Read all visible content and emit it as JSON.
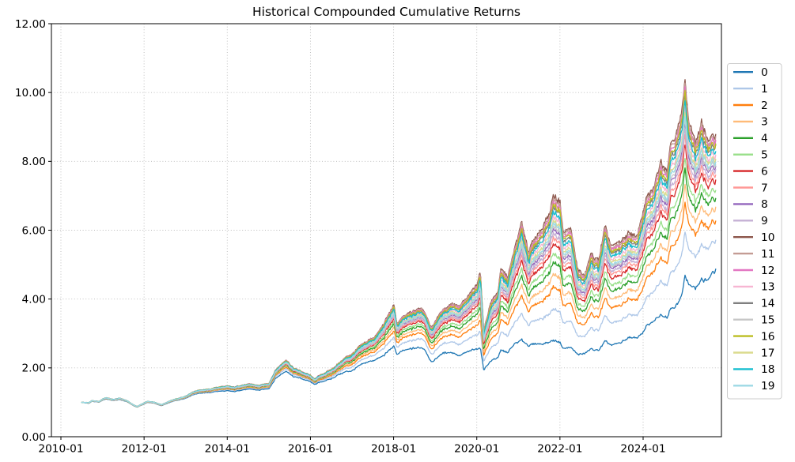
{
  "chart_data": {
    "type": "line",
    "title": "Historical Compounded Cumulative Returns",
    "xlabel": "",
    "ylabel": "",
    "ylim": [
      0,
      12
    ],
    "y_tick_labels": [
      "0.00",
      "2.00",
      "4.00",
      "6.00",
      "8.00",
      "10.00",
      "12.00"
    ],
    "x_tick_labels": [
      "2010-01",
      "2012-01",
      "2014-01",
      "2016-01",
      "2018-01",
      "2020-01",
      "2022-01",
      "2024-01"
    ],
    "grid": {
      "visible": true,
      "style": "dotted"
    },
    "legend": {
      "position": "right-outside",
      "labels": [
        "0",
        "1",
        "2",
        "3",
        "4",
        "5",
        "6",
        "7",
        "8",
        "9",
        "10",
        "11",
        "12",
        "13",
        "14",
        "15",
        "16",
        "17",
        "18",
        "19"
      ]
    },
    "series": [
      {
        "name": "0",
        "color": "#1f77b4",
        "band_fraction": 0.0,
        "final_value": 4.85
      },
      {
        "name": "1",
        "color": "#aec7e8",
        "band_fraction": 0.22,
        "final_value": 5.7
      },
      {
        "name": "2",
        "color": "#ff7f0e",
        "band_fraction": 0.37,
        "final_value": 6.3
      },
      {
        "name": "3",
        "color": "#ffbb78",
        "band_fraction": 0.46,
        "final_value": 6.65
      },
      {
        "name": "4",
        "color": "#2ca02c",
        "band_fraction": 0.54,
        "final_value": 6.95
      },
      {
        "name": "5",
        "color": "#98df8a",
        "band_fraction": 0.6,
        "final_value": 7.2
      },
      {
        "name": "6",
        "color": "#d62728",
        "band_fraction": 0.67,
        "final_value": 7.45
      },
      {
        "name": "7",
        "color": "#ff9896",
        "band_fraction": 0.71,
        "final_value": 7.6
      },
      {
        "name": "8",
        "color": "#9467bd",
        "band_fraction": 0.77,
        "final_value": 7.85
      },
      {
        "name": "9",
        "color": "#c5b0d5",
        "band_fraction": 0.74,
        "final_value": 7.75
      },
      {
        "name": "10",
        "color": "#8c564b",
        "band_fraction": 1.0,
        "final_value": 8.75
      },
      {
        "name": "11",
        "color": "#c49c94",
        "band_fraction": 0.98,
        "final_value": 8.65
      },
      {
        "name": "12",
        "color": "#e377c2",
        "band_fraction": 0.96,
        "final_value": 8.6
      },
      {
        "name": "13",
        "color": "#f7b6d2",
        "band_fraction": 0.86,
        "final_value": 8.2
      },
      {
        "name": "14",
        "color": "#7f7f7f",
        "band_fraction": 0.92,
        "final_value": 8.45
      },
      {
        "name": "15",
        "color": "#c7c7c7",
        "band_fraction": 0.79,
        "final_value": 7.95
      },
      {
        "name": "16",
        "color": "#bcbd22",
        "band_fraction": 0.94,
        "final_value": 8.5
      },
      {
        "name": "17",
        "color": "#dbdb8d",
        "band_fraction": 0.83,
        "final_value": 8.1
      },
      {
        "name": "18",
        "color": "#17becf",
        "band_fraction": 0.89,
        "final_value": 8.3
      },
      {
        "name": "19",
        "color": "#9edae5",
        "band_fraction": 0.81,
        "final_value": 8.0
      }
    ],
    "envelope": {
      "note": "20 tightly correlated equity curves starting at 1.0 in 2010-07; bottom envelope is series 0, top envelope is series 10; other series sit between them at band_fraction.",
      "dates": [
        "2010-07",
        "2010-09",
        "2010-10",
        "2010-12",
        "2011-01",
        "2011-02",
        "2011-04",
        "2011-06",
        "2011-08",
        "2011-10",
        "2011-11",
        "2012-01",
        "2012-02",
        "2012-04",
        "2012-06",
        "2012-07",
        "2012-09",
        "2012-11",
        "2013-01",
        "2013-03",
        "2013-05",
        "2013-08",
        "2013-10",
        "2014-01",
        "2014-03",
        "2014-05",
        "2014-08",
        "2014-10",
        "2015-01",
        "2015-03",
        "2015-06",
        "2015-08",
        "2015-10",
        "2016-01",
        "2016-02",
        "2016-05",
        "2016-07",
        "2016-09",
        "2016-11",
        "2017-01",
        "2017-03",
        "2017-05",
        "2017-08",
        "2017-10",
        "2018-01",
        "2018-02",
        "2018-04",
        "2018-06",
        "2018-09",
        "2018-10",
        "2018-12",
        "2019-02",
        "2019-04",
        "2019-06",
        "2019-08",
        "2019-10",
        "2020-01",
        "2020-02",
        "2020-03",
        "2020-05",
        "2020-07",
        "2020-08",
        "2020-10",
        "2020-12",
        "2021-02",
        "2021-04",
        "2021-06",
        "2021-08",
        "2021-10",
        "2021-11",
        "2022-01",
        "2022-02",
        "2022-04",
        "2022-06",
        "2022-08",
        "2022-10",
        "2022-12",
        "2023-02",
        "2023-04",
        "2023-07",
        "2023-09",
        "2023-11",
        "2024-01",
        "2024-02",
        "2024-04",
        "2024-06",
        "2024-08",
        "2024-09",
        "2024-11",
        "2024-12",
        "2025-01",
        "2025-02",
        "2025-04",
        "2025-06",
        "2025-08",
        "2025-10"
      ],
      "bottom_values": [
        1.0,
        0.97,
        1.03,
        1.0,
        1.06,
        1.1,
        1.05,
        1.08,
        1.02,
        0.9,
        0.86,
        0.95,
        1.0,
        0.97,
        0.9,
        0.94,
        1.02,
        1.07,
        1.12,
        1.22,
        1.27,
        1.28,
        1.32,
        1.33,
        1.31,
        1.36,
        1.38,
        1.35,
        1.4,
        1.7,
        1.92,
        1.75,
        1.7,
        1.6,
        1.52,
        1.62,
        1.68,
        1.8,
        1.88,
        1.92,
        2.05,
        2.15,
        2.25,
        2.35,
        2.62,
        2.4,
        2.5,
        2.55,
        2.6,
        2.55,
        2.15,
        2.35,
        2.45,
        2.45,
        2.35,
        2.45,
        2.55,
        2.6,
        1.95,
        2.2,
        2.3,
        2.5,
        2.45,
        2.7,
        2.8,
        2.65,
        2.7,
        2.7,
        2.75,
        2.8,
        2.75,
        2.55,
        2.6,
        2.4,
        2.4,
        2.55,
        2.5,
        2.75,
        2.65,
        2.75,
        2.9,
        2.85,
        3.05,
        3.2,
        3.35,
        3.55,
        3.5,
        3.75,
        3.85,
        4.05,
        4.7,
        4.45,
        4.3,
        4.55,
        4.6,
        4.85
      ],
      "top_values": [
        1.0,
        0.99,
        1.05,
        1.02,
        1.09,
        1.14,
        1.08,
        1.12,
        1.05,
        0.92,
        0.88,
        0.98,
        1.03,
        1.0,
        0.93,
        0.97,
        1.06,
        1.12,
        1.18,
        1.3,
        1.36,
        1.38,
        1.44,
        1.47,
        1.44,
        1.5,
        1.53,
        1.49,
        1.55,
        1.95,
        2.25,
        2.0,
        1.92,
        1.78,
        1.68,
        1.85,
        1.95,
        2.12,
        2.3,
        2.4,
        2.6,
        2.75,
        2.95,
        3.25,
        3.82,
        3.3,
        3.5,
        3.6,
        3.75,
        3.65,
        3.15,
        3.55,
        3.75,
        3.9,
        3.8,
        4.0,
        4.4,
        4.85,
        3.1,
        3.9,
        4.2,
        4.85,
        4.65,
        5.5,
        6.2,
        5.4,
        5.8,
        6.1,
        6.5,
        7.0,
        6.85,
        5.9,
        6.1,
        4.9,
        4.65,
        5.3,
        5.1,
        6.05,
        5.5,
        5.7,
        5.95,
        5.75,
        6.55,
        6.9,
        7.2,
        8.0,
        7.8,
        8.6,
        8.9,
        9.3,
        10.5,
        9.3,
        8.5,
        9.1,
        8.6,
        8.75
      ]
    }
  }
}
